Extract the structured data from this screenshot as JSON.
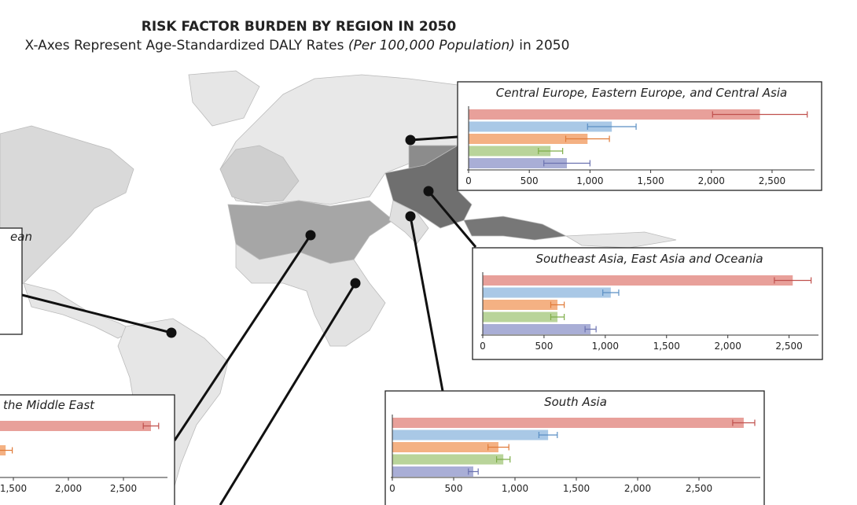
{
  "header": {
    "title": "RISK FACTOR BURDEN BY REGION IN 2050",
    "subtitle": [
      "X-Axes Represent Age-Standardized DALY Rates",
      "(Per 100,000 Population)",
      "in 2050"
    ]
  },
  "chart_data": [
    {
      "type": "bar",
      "title": "Central Europe, Eastern Europe, and Central Asia",
      "orientation": "horizontal",
      "values": [
        2400,
        1180,
        980,
        675,
        810
      ],
      "errors": [
        390,
        200,
        180,
        100,
        190
      ],
      "colors": [
        "#e8a09a",
        "#a9c8e6",
        "#f4b183",
        "#b9d49a",
        "#a9aed6"
      ],
      "error_colors": [
        "#c0504d",
        "#5b8fc4",
        "#e07b39",
        "#7fae4a",
        "#6b72b0"
      ],
      "xlim": [
        0,
        2850
      ],
      "xticks": [
        0,
        500,
        {
          "value": 1000,
          "label": "1,000"
        },
        {
          "value": 1500,
          "label": "1,500"
        },
        {
          "value": 2000,
          "label": "2,000"
        },
        {
          "value": 2500,
          "label": "2,500"
        }
      ]
    },
    {
      "type": "bar",
      "title": "Southeast Asia, East Asia and Oceania",
      "orientation": "horizontal",
      "values": [
        2530,
        1045,
        610,
        610,
        880
      ],
      "errors": [
        150,
        65,
        55,
        55,
        45
      ],
      "colors": [
        "#e8a09a",
        "#a9c8e6",
        "#f4b183",
        "#b9d49a",
        "#a9aed6"
      ],
      "error_colors": [
        "#c0504d",
        "#5b8fc4",
        "#e07b39",
        "#7fae4a",
        "#6b72b0"
      ],
      "xlim": [
        0,
        2740
      ],
      "xticks": [
        0,
        500,
        {
          "value": 1000,
          "label": "1,000"
        },
        {
          "value": 1500,
          "label": "1,500"
        },
        {
          "value": 2000,
          "label": "2,000"
        },
        {
          "value": 2500,
          "label": "2,500"
        }
      ]
    },
    {
      "type": "bar",
      "title": "South Asia",
      "orientation": "horizontal",
      "values": [
        2865,
        1270,
        865,
        905,
        660
      ],
      "errors": [
        90,
        75,
        85,
        55,
        40
      ],
      "colors": [
        "#e8a09a",
        "#a9c8e6",
        "#f4b183",
        "#b9d49a",
        "#a9aed6"
      ],
      "error_colors": [
        "#c0504d",
        "#5b8fc4",
        "#e07b39",
        "#7fae4a",
        "#6b72b0"
      ],
      "xlim": [
        0,
        3000
      ],
      "xticks": [
        0,
        500,
        {
          "value": 1000,
          "label": "1,000"
        },
        {
          "value": 1500,
          "label": "1,500"
        },
        {
          "value": 2000,
          "label": "2,000"
        },
        {
          "value": 2500,
          "label": "2,500"
        }
      ]
    },
    {
      "type": "bar",
      "title": "the Middle East",
      "orientation": "horizontal",
      "values": [
        2750,
        null,
        1430,
        null,
        null
      ],
      "errors": [
        70,
        null,
        60,
        null,
        null
      ],
      "colors": [
        "#e8a09a",
        "#a9c8e6",
        "#f4b183",
        "#b9d49a",
        "#a9aed6"
      ],
      "error_colors": [
        "#c0504d",
        "#5b8fc4",
        "#e07b39",
        "#7fae4a",
        "#6b72b0"
      ],
      "xlim": [
        0,
        2900
      ],
      "xticks": [
        {
          "value": 1500,
          "label": "1,500"
        },
        {
          "value": 2000,
          "label": "2,000"
        },
        {
          "value": 2500,
          "label": "2,500"
        }
      ]
    },
    {
      "type": "label",
      "title": "ean"
    }
  ]
}
